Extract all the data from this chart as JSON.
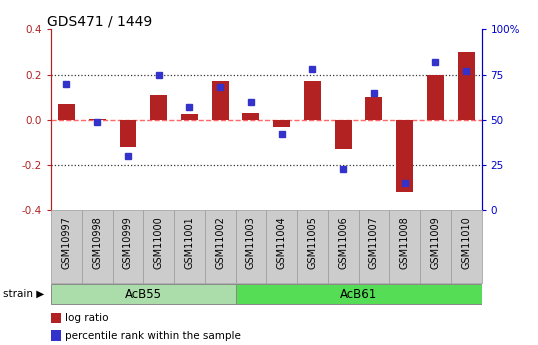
{
  "title": "GDS471 / 1449",
  "samples": [
    "GSM10997",
    "GSM10998",
    "GSM10999",
    "GSM11000",
    "GSM11001",
    "GSM11002",
    "GSM11003",
    "GSM11004",
    "GSM11005",
    "GSM11006",
    "GSM11007",
    "GSM11008",
    "GSM11009",
    "GSM11010"
  ],
  "log_ratio": [
    0.07,
    0.005,
    -0.12,
    0.11,
    0.025,
    0.17,
    0.03,
    -0.03,
    0.17,
    -0.13,
    0.1,
    -0.32,
    0.2,
    0.3
  ],
  "percentile": [
    70,
    49,
    30,
    75,
    57,
    68,
    60,
    42,
    78,
    23,
    65,
    15,
    82,
    77
  ],
  "bar_color": "#b22222",
  "dot_color": "#3333cc",
  "bg_color": "#ffffff",
  "grid_color": "#000000",
  "zero_line_color": "#ff6666",
  "ylim": [
    -0.4,
    0.4
  ],
  "yticks_left": [
    -0.4,
    -0.2,
    0.0,
    0.2,
    0.4
  ],
  "yticks_right": [
    0,
    25,
    50,
    75,
    100
  ],
  "dotted_lines": [
    -0.2,
    0.2
  ],
  "group1_label": "AcB55",
  "group1_indices": [
    0,
    5
  ],
  "group2_label": "AcB61",
  "group2_indices": [
    6,
    13
  ],
  "group1_color": "#aaddaa",
  "group2_color": "#55dd55",
  "strain_label": "strain",
  "legend_bar_label": "log ratio",
  "legend_dot_label": "percentile rank within the sample",
  "title_fontsize": 10,
  "tick_fontsize": 7.5,
  "bar_width": 0.55,
  "right_axis_color": "#0000cc",
  "label_box_color": "#cccccc",
  "label_box_edge": "#999999"
}
